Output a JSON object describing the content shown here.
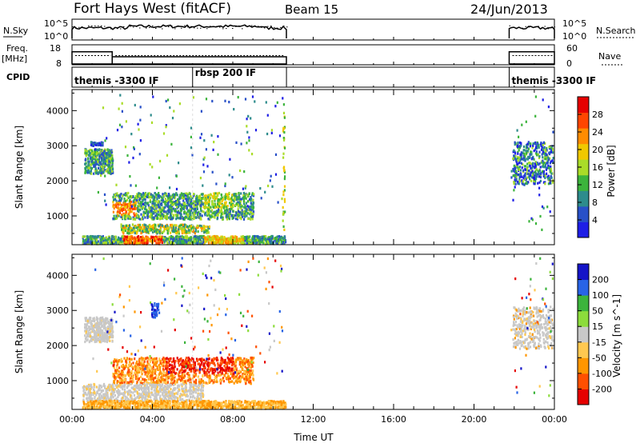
{
  "header": {
    "station": "Fort Hays West (fitACF)",
    "beam": "Beam 15",
    "date": "24/Jun/2013"
  },
  "chart_data": [
    {
      "type": "line",
      "panel": "noise",
      "left_label": "N.Sky",
      "right_label": "N.Search",
      "left_ticks": [
        "10^5",
        "10^0"
      ],
      "right_ticks": [
        "10^5",
        "10^0"
      ],
      "segments": [
        [
          "00:00",
          "10:40"
        ],
        [
          "21:45",
          "24:00"
        ]
      ]
    },
    {
      "type": "line",
      "panel": "frequency",
      "left_label": "Freq.",
      "left_unit": "[MHz]",
      "right_label": "Nave",
      "left_ticks": [
        18,
        8
      ],
      "right_ticks": [
        60,
        0
      ],
      "freq_steps": [
        {
          "start": "00:00",
          "end": "02:00",
          "mhz": 14.5
        },
        {
          "start": "02:00",
          "end": "10:40",
          "mhz": 12.0
        },
        {
          "start": "21:45",
          "end": "24:00",
          "mhz": 14.5
        }
      ],
      "nave_level": 12.6
    },
    {
      "type": "table",
      "panel": "cpid",
      "label": "CPID",
      "modes": [
        {
          "start": "00:00",
          "name": "themis -3300 IF"
        },
        {
          "start": "06:00",
          "name": "rbsp 200 IF"
        },
        {
          "start": "21:45",
          "name": "themis -3300 IF"
        }
      ]
    },
    {
      "type": "heatmap",
      "panel": "power",
      "ylabel": "Slant Range [km]",
      "yticks": [
        1000,
        2000,
        3000,
        4000
      ],
      "ylim": [
        180,
        4600
      ],
      "colorbar_label": "Power [dB]",
      "colorbar_ticks": [
        4,
        8,
        12,
        16,
        20,
        24,
        28
      ],
      "colorbar_range": [
        0,
        32
      ],
      "colors": [
        "#1e1ee6",
        "#2850c8",
        "#2d8c8c",
        "#3cb43c",
        "#aadc28",
        "#f0c800",
        "#ff8c00",
        "#ff4600",
        "#e60000"
      ]
    },
    {
      "type": "heatmap",
      "panel": "velocity",
      "ylabel": "Slant Range [km]",
      "yticks": [
        1000,
        2000,
        3000,
        4000
      ],
      "ylim": [
        180,
        4600
      ],
      "xlabel": "Time UT",
      "xticks": [
        "00:00",
        "04:00",
        "08:00",
        "12:00",
        "16:00",
        "20:00",
        "00:00"
      ],
      "colorbar_label": "Velocity [m s^-1]",
      "colorbar_ticks": [
        200,
        100,
        50,
        15,
        -15,
        -50,
        -100,
        -200
      ],
      "colors": [
        "#1414c8",
        "#2864e6",
        "#3cb43c",
        "#8cdc3c",
        "#c8c8c8",
        "#ffc850",
        "#ff9600",
        "#ff5000",
        "#e60000"
      ]
    }
  ]
}
